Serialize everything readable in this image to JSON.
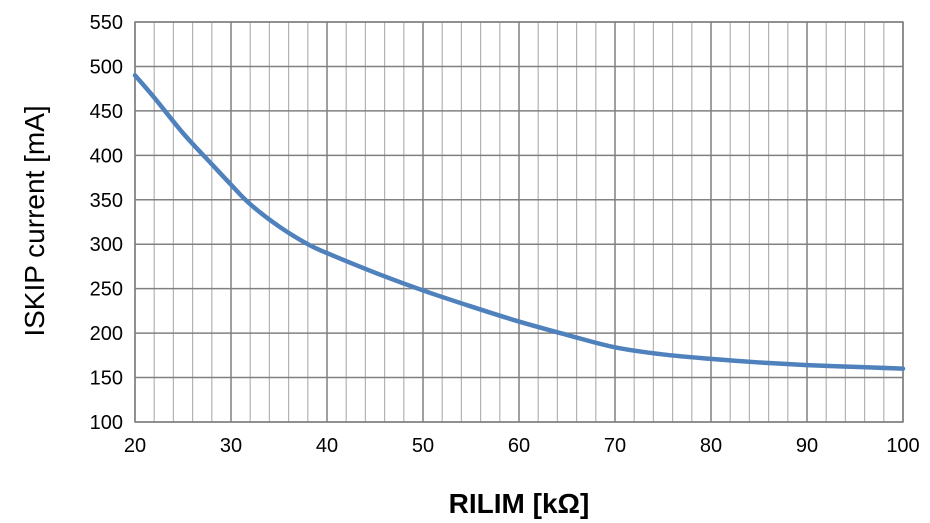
{
  "chart_data": {
    "type": "line",
    "xlabel": "RILIM [kΩ]",
    "ylabel": "ISKIP current [mA]",
    "xlim": [
      20,
      100
    ],
    "ylim": [
      100,
      550
    ],
    "x_ticks": [
      20,
      30,
      40,
      50,
      60,
      70,
      80,
      90,
      100
    ],
    "y_ticks": [
      100,
      150,
      200,
      250,
      300,
      350,
      400,
      450,
      500,
      550
    ],
    "x_minor_step": 2,
    "grid": true,
    "legend": "none",
    "series": [
      {
        "color": "#4f81bd",
        "x": [
          20,
          22,
          25,
          28,
          30,
          32,
          35,
          38,
          40,
          45,
          50,
          55,
          60,
          65,
          70,
          75,
          80,
          85,
          90,
          95,
          100
        ],
        "y": [
          490,
          465,
          425,
          390,
          367,
          345,
          320,
          300,
          290,
          268,
          248,
          230,
          213,
          198,
          184,
          176,
          171,
          167,
          164,
          162,
          160
        ]
      }
    ],
    "colors": {
      "major_grid": "#808080",
      "minor_grid": "#b3b3b3",
      "axis": "#808080"
    }
  }
}
